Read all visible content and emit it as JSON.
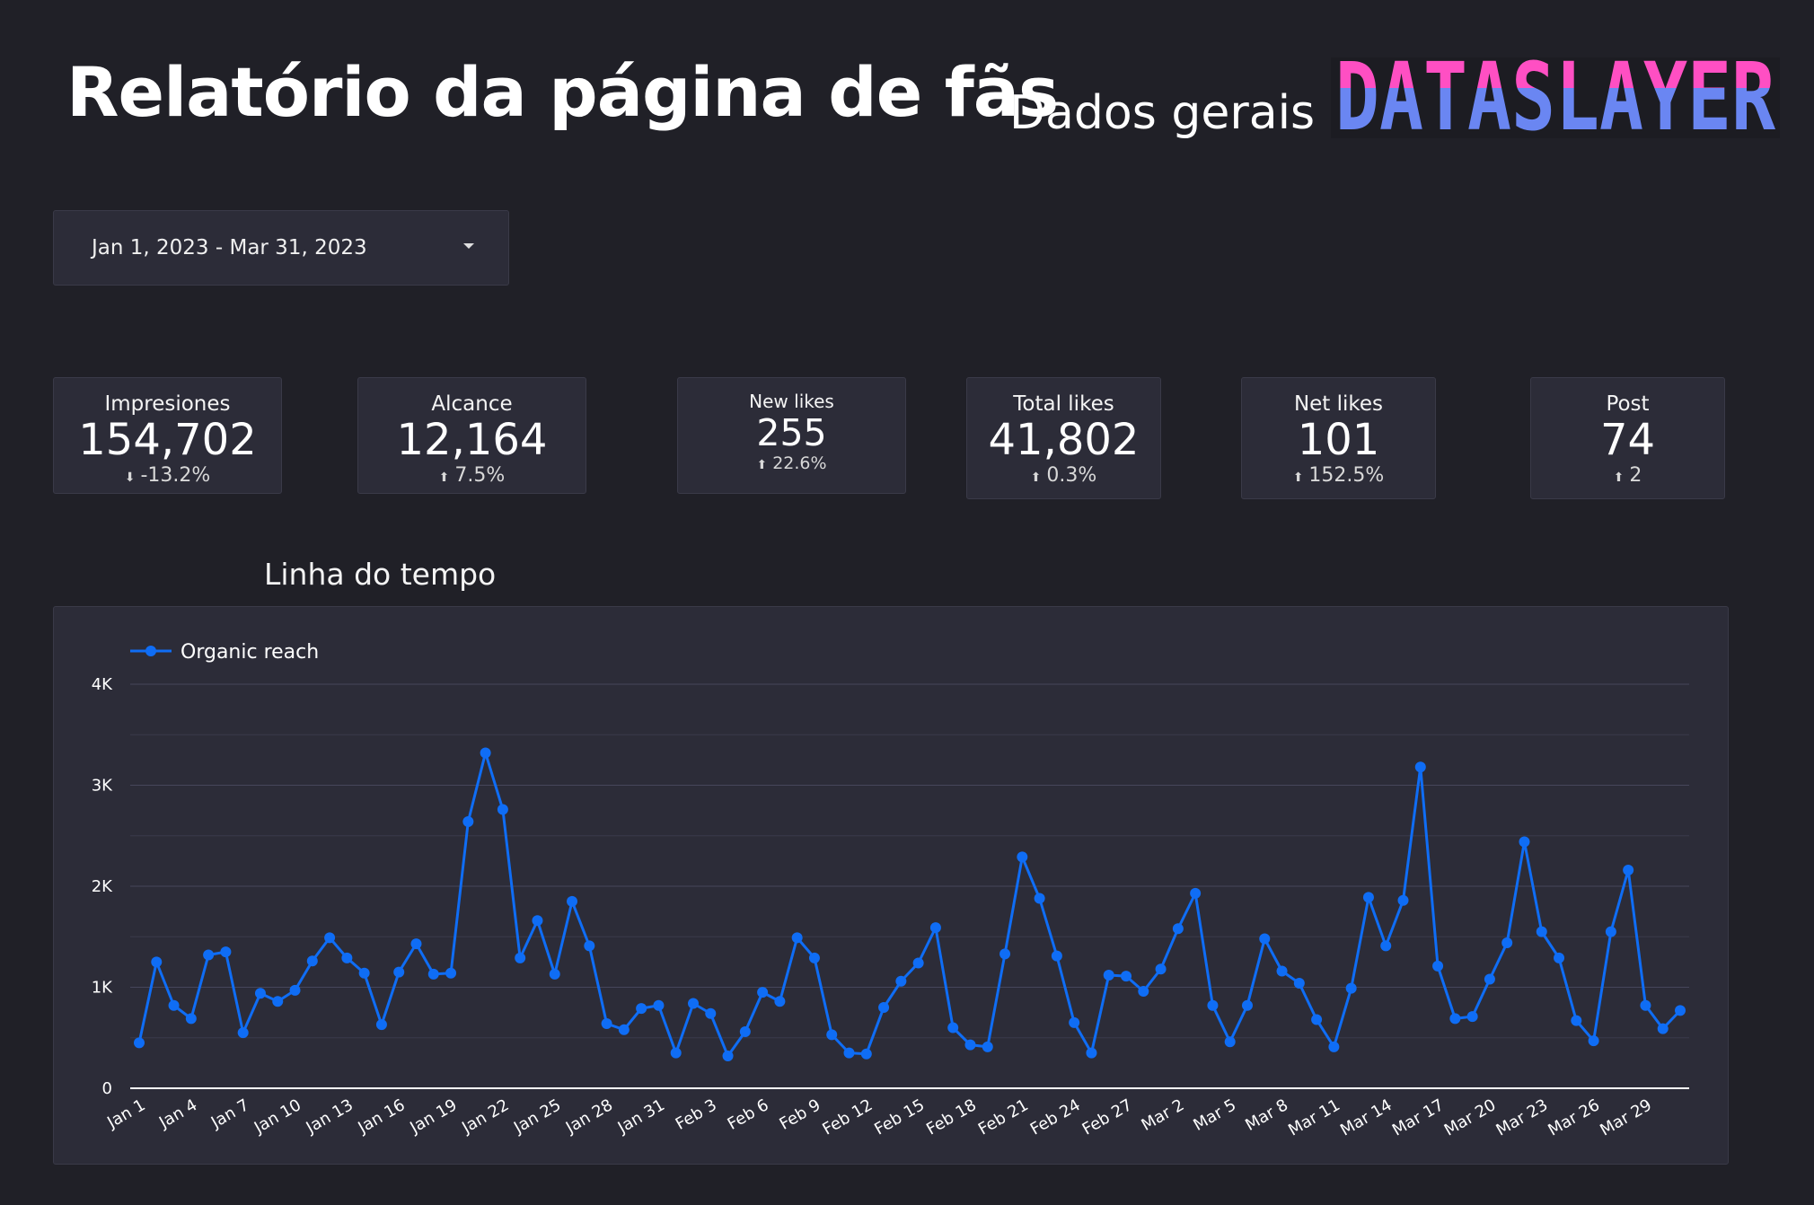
{
  "header": {
    "title": "Relatório da página de fãs",
    "subtitle": "Dados gerais",
    "logo_text": "DATASLAYER"
  },
  "date_range": {
    "label": "Jan 1, 2023 - Mar 31, 2023"
  },
  "kpis": [
    {
      "label": "Impresiones",
      "value": "154,702",
      "delta": "-13.2%",
      "direction": "down"
    },
    {
      "label": "Alcance",
      "value": "12,164",
      "delta": "7.5%",
      "direction": "up"
    },
    {
      "label": "New likes",
      "value": "255",
      "delta": "22.6%",
      "direction": "up"
    },
    {
      "label": "Total likes",
      "value": "41,802",
      "delta": "0.3%",
      "direction": "up"
    },
    {
      "label": "Net likes",
      "value": "101",
      "delta": "152.5%",
      "direction": "up"
    },
    {
      "label": "Post",
      "value": "74",
      "delta": "2",
      "direction": "up"
    }
  ],
  "colors": {
    "background": "#202027",
    "panel": "#2c2c38",
    "series": "#0f6df5",
    "negative_delta": "#f0a6c8",
    "positive_green": "#63c178",
    "logo_top": "#ff4fc3",
    "logo_bottom": "#6a86f2"
  },
  "chart_title": "Linha do tempo",
  "chart_data": {
    "type": "line",
    "x": [
      "Jan 1",
      "Jan 2",
      "Jan 3",
      "Jan 4",
      "Jan 5",
      "Jan 6",
      "Jan 7",
      "Jan 8",
      "Jan 9",
      "Jan 10",
      "Jan 11",
      "Jan 12",
      "Jan 13",
      "Jan 14",
      "Jan 15",
      "Jan 16",
      "Jan 17",
      "Jan 18",
      "Jan 19",
      "Jan 20",
      "Jan 21",
      "Jan 22",
      "Jan 23",
      "Jan 24",
      "Jan 25",
      "Jan 26",
      "Jan 27",
      "Jan 28",
      "Jan 29",
      "Jan 30",
      "Jan 31",
      "Feb 1",
      "Feb 2",
      "Feb 3",
      "Feb 4",
      "Feb 5",
      "Feb 6",
      "Feb 7",
      "Feb 8",
      "Feb 9",
      "Feb 10",
      "Feb 11",
      "Feb 12",
      "Feb 13",
      "Feb 14",
      "Feb 15",
      "Feb 16",
      "Feb 17",
      "Feb 18",
      "Feb 19",
      "Feb 20",
      "Feb 21",
      "Feb 22",
      "Feb 23",
      "Feb 24",
      "Feb 25",
      "Feb 26",
      "Feb 27",
      "Feb 28",
      "Mar 1",
      "Mar 2",
      "Mar 3",
      "Mar 4",
      "Mar 5",
      "Mar 6",
      "Mar 7",
      "Mar 8",
      "Mar 9",
      "Mar 10",
      "Mar 11",
      "Mar 12",
      "Mar 13",
      "Mar 14",
      "Mar 15",
      "Mar 16",
      "Mar 17",
      "Mar 18",
      "Mar 19",
      "Mar 20",
      "Mar 21",
      "Mar 22",
      "Mar 23",
      "Mar 24",
      "Mar 25",
      "Mar 26",
      "Mar 27",
      "Mar 28",
      "Mar 29",
      "Mar 30",
      "Mar 31"
    ],
    "x_tick_labels": [
      "Jan 1",
      "Jan 4",
      "Jan 7",
      "Jan 10",
      "Jan 13",
      "Jan 16",
      "Jan 19",
      "Jan 22",
      "Jan 25",
      "Jan 28",
      "Jan 31",
      "Feb 3",
      "Feb 6",
      "Feb 9",
      "Feb 12",
      "Feb 15",
      "Feb 18",
      "Feb 21",
      "Feb 24",
      "Feb 27",
      "Mar 2",
      "Mar 5",
      "Mar 8",
      "Mar 11",
      "Mar 14",
      "Mar 17",
      "Mar 20",
      "Mar 23",
      "Mar 26",
      "Mar 29"
    ],
    "series": [
      {
        "name": "Organic reach",
        "values": [
          450,
          1250,
          820,
          690,
          1320,
          1350,
          550,
          940,
          860,
          970,
          1260,
          1490,
          1290,
          1140,
          630,
          1150,
          1430,
          1130,
          1140,
          2640,
          3320,
          2760,
          1290,
          1660,
          1130,
          1850,
          1410,
          640,
          580,
          790,
          820,
          350,
          840,
          740,
          320,
          560,
          950,
          860,
          1490,
          1290,
          530,
          350,
          340,
          800,
          1060,
          1240,
          1590,
          600,
          430,
          410,
          1330,
          2290,
          1880,
          1310,
          650,
          350,
          1120,
          1110,
          960,
          1180,
          1580,
          1930,
          820,
          460,
          820,
          1480,
          1160,
          1040,
          680,
          410,
          990,
          1890,
          1410,
          1860,
          3180,
          1210,
          690,
          710,
          1080,
          1440,
          2440,
          1550,
          1290,
          670,
          470,
          1550,
          2160,
          820,
          590,
          770
        ]
      }
    ],
    "y_ticks": [
      "0",
      "1K",
      "2K",
      "3K",
      "4K"
    ],
    "ylim": [
      0,
      4000
    ],
    "grid": true,
    "legend": "top-left"
  }
}
